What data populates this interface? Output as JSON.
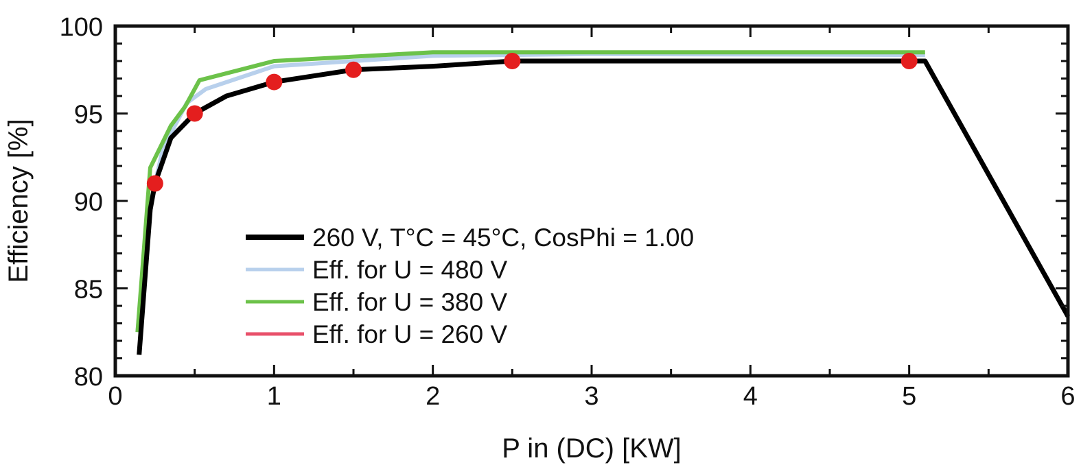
{
  "chart_data": {
    "type": "line",
    "title": "",
    "xlabel": "P in (DC) [KW]",
    "ylabel": "Efficiency [%]",
    "xlim": [
      0,
      6
    ],
    "ylim": [
      80,
      100
    ],
    "xticks": [
      0,
      1,
      2,
      3,
      4,
      5,
      6
    ],
    "xtick_labels": [
      "0",
      "1",
      "2",
      "3",
      "4",
      "5",
      "6"
    ],
    "yticks": [
      80,
      85,
      90,
      95,
      100
    ],
    "ytick_labels": [
      "80",
      "85",
      "90",
      "95",
      "100"
    ],
    "grid": false,
    "legend_position": "center-left",
    "series": [
      {
        "name": "260 V, T°C = 45°C, CosPhi = 1.00",
        "color": "#000000",
        "x": [
          0.15,
          0.22,
          0.25,
          0.35,
          0.5,
          0.7,
          1.0,
          1.5,
          2.0,
          2.5,
          5.0,
          5.1,
          6.0
        ],
        "y": [
          81.2,
          89.5,
          91.0,
          93.6,
          95.0,
          96.0,
          96.8,
          97.5,
          97.7,
          98.0,
          98.0,
          98.0,
          83.4
        ]
      },
      {
        "name": "Eff. for U = 480 V",
        "color": "#b8d0ec",
        "x": [
          0.14,
          0.2,
          0.3,
          0.45,
          0.57,
          1.0,
          2.0,
          3.0,
          5.1
        ],
        "y": [
          82.5,
          89.0,
          93.0,
          95.6,
          96.4,
          97.7,
          98.3,
          98.4,
          98.35
        ]
      },
      {
        "name": "Eff. for U = 380 V",
        "color": "#6cc24a",
        "x": [
          0.14,
          0.22,
          0.35,
          0.44,
          0.53,
          1.0,
          2.0,
          3.0,
          5.1
        ],
        "y": [
          82.5,
          91.9,
          94.3,
          95.4,
          96.9,
          98.0,
          98.5,
          98.5,
          98.5
        ]
      },
      {
        "name": "Eff. for U = 260 V",
        "color": "#e8506a",
        "x": [],
        "y": []
      }
    ],
    "markers": {
      "color": "#e41e1e",
      "x": [
        0.25,
        0.5,
        1.0,
        1.5,
        2.5,
        5.0
      ],
      "y": [
        91.0,
        95.0,
        96.8,
        97.5,
        98.0,
        98.0
      ]
    }
  }
}
